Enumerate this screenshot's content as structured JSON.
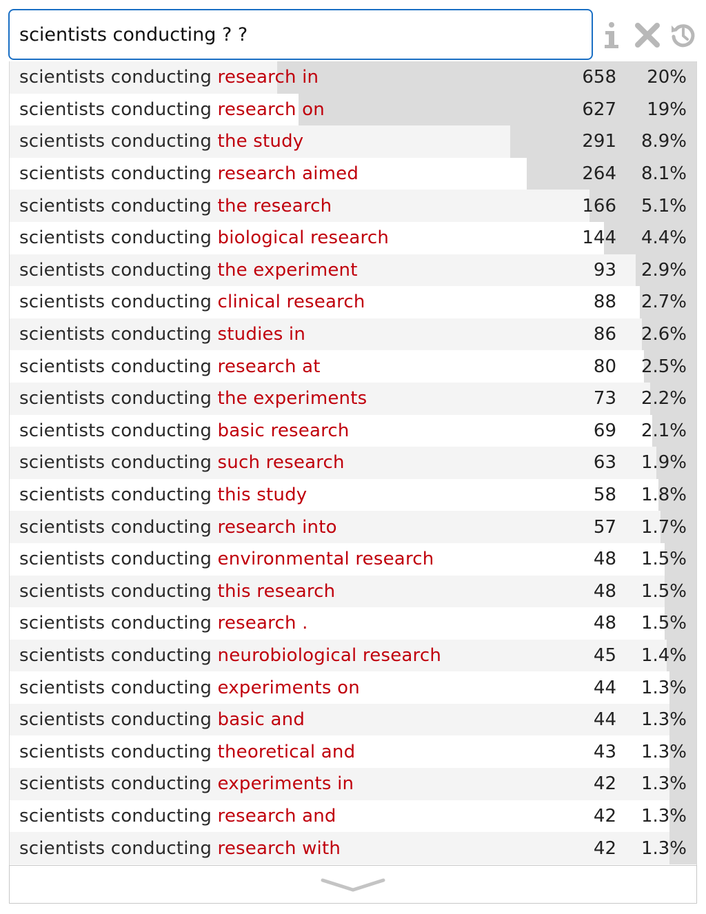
{
  "search": {
    "value": "scientists conducting ? ?"
  },
  "toolbar": {
    "icons": [
      "info-icon",
      "clear-icon",
      "history-icon"
    ],
    "icon_color": "#b8b8b8",
    "info_glyph": "i"
  },
  "colors": {
    "prefix_text": "#2a2a2a",
    "suffix_text": "#c0000c",
    "input_border": "#1a6fc4",
    "bar_fill": "#dcdcdc"
  },
  "results": [
    {
      "prefix": "scientists conducting",
      "suffix": "research in",
      "count": "658",
      "percent": "20%",
      "share": 0.2
    },
    {
      "prefix": "scientists conducting",
      "suffix": "research on",
      "count": "627",
      "percent": "19%",
      "share": 0.19
    },
    {
      "prefix": "scientists conducting",
      "suffix": "the study",
      "count": "291",
      "percent": "8.9%",
      "share": 0.089
    },
    {
      "prefix": "scientists conducting",
      "suffix": "research aimed",
      "count": "264",
      "percent": "8.1%",
      "share": 0.081
    },
    {
      "prefix": "scientists conducting",
      "suffix": "the research",
      "count": "166",
      "percent": "5.1%",
      "share": 0.051
    },
    {
      "prefix": "scientists conducting",
      "suffix": "biological research",
      "count": "144",
      "percent": "4.4%",
      "share": 0.044
    },
    {
      "prefix": "scientists conducting",
      "suffix": "the experiment",
      "count": "93",
      "percent": "2.9%",
      "share": 0.029
    },
    {
      "prefix": "scientists conducting",
      "suffix": "clinical research",
      "count": "88",
      "percent": "2.7%",
      "share": 0.027
    },
    {
      "prefix": "scientists conducting",
      "suffix": "studies in",
      "count": "86",
      "percent": "2.6%",
      "share": 0.026
    },
    {
      "prefix": "scientists conducting",
      "suffix": "research at",
      "count": "80",
      "percent": "2.5%",
      "share": 0.025
    },
    {
      "prefix": "scientists conducting",
      "suffix": "the experiments",
      "count": "73",
      "percent": "2.2%",
      "share": 0.022
    },
    {
      "prefix": "scientists conducting",
      "suffix": "basic research",
      "count": "69",
      "percent": "2.1%",
      "share": 0.021
    },
    {
      "prefix": "scientists conducting",
      "suffix": "such research",
      "count": "63",
      "percent": "1.9%",
      "share": 0.019
    },
    {
      "prefix": "scientists conducting",
      "suffix": "this study",
      "count": "58",
      "percent": "1.8%",
      "share": 0.018
    },
    {
      "prefix": "scientists conducting",
      "suffix": "research into",
      "count": "57",
      "percent": "1.7%",
      "share": 0.017
    },
    {
      "prefix": "scientists conducting",
      "suffix": "environmental research",
      "count": "48",
      "percent": "1.5%",
      "share": 0.015
    },
    {
      "prefix": "scientists conducting",
      "suffix": "this research",
      "count": "48",
      "percent": "1.5%",
      "share": 0.015
    },
    {
      "prefix": "scientists conducting",
      "suffix": "research .",
      "count": "48",
      "percent": "1.5%",
      "share": 0.015
    },
    {
      "prefix": "scientists conducting",
      "suffix": "neurobiological research",
      "count": "45",
      "percent": "1.4%",
      "share": 0.014
    },
    {
      "prefix": "scientists conducting",
      "suffix": "experiments on",
      "count": "44",
      "percent": "1.3%",
      "share": 0.013
    },
    {
      "prefix": "scientists conducting",
      "suffix": "basic and",
      "count": "44",
      "percent": "1.3%",
      "share": 0.013
    },
    {
      "prefix": "scientists conducting",
      "suffix": "theoretical and",
      "count": "43",
      "percent": "1.3%",
      "share": 0.013
    },
    {
      "prefix": "scientists conducting",
      "suffix": "experiments in",
      "count": "42",
      "percent": "1.3%",
      "share": 0.013
    },
    {
      "prefix": "scientists conducting",
      "suffix": "research and",
      "count": "42",
      "percent": "1.3%",
      "share": 0.013
    },
    {
      "prefix": "scientists conducting",
      "suffix": "research with",
      "count": "42",
      "percent": "1.3%",
      "share": 0.013
    }
  ],
  "footer": {
    "more_icon": "chevron-down-icon"
  }
}
